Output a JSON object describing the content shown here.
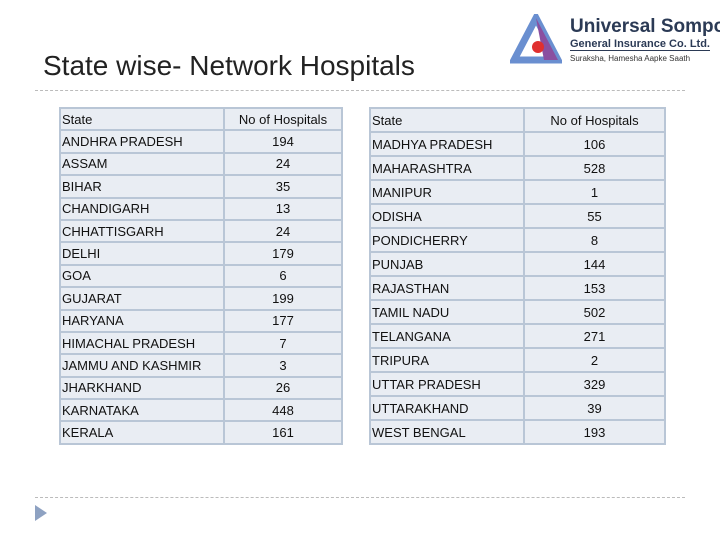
{
  "slide": {
    "title": "State wise- Network Hospitals"
  },
  "logo": {
    "name": "Universal Sompo",
    "subtitle": "General Insurance Co. Ltd.",
    "tagline": "Suraksha, Hamesha Aapke Saath"
  },
  "table_left": {
    "headers": [
      "State",
      "No of Hospitals"
    ],
    "rows": [
      [
        "ANDHRA PRADESH",
        "194"
      ],
      [
        "ASSAM",
        "24"
      ],
      [
        "BIHAR",
        "35"
      ],
      [
        "CHANDIGARH",
        "13"
      ],
      [
        "CHHATTISGARH",
        "24"
      ],
      [
        "DELHI",
        "179"
      ],
      [
        "GOA",
        "6"
      ],
      [
        "GUJARAT",
        "199"
      ],
      [
        "HARYANA",
        "177"
      ],
      [
        "HIMACHAL PRADESH",
        "7"
      ],
      [
        "JAMMU AND KASHMIR",
        "3"
      ],
      [
        "JHARKHAND",
        "26"
      ],
      [
        "KARNATAKA",
        "448"
      ],
      [
        "KERALA",
        "161"
      ]
    ]
  },
  "table_right": {
    "headers": [
      "State",
      "No of Hospitals"
    ],
    "rows": [
      [
        "MADHYA PRADESH",
        "106"
      ],
      [
        "MAHARASHTRA",
        "528"
      ],
      [
        "MANIPUR",
        "1"
      ],
      [
        "ODISHA",
        "55"
      ],
      [
        "PONDICHERRY",
        "8"
      ],
      [
        "PUNJAB",
        "144"
      ],
      [
        "RAJASTHAN",
        "153"
      ],
      [
        "TAMIL NADU",
        "502"
      ],
      [
        "TELANGANA",
        "271"
      ],
      [
        "TRIPURA",
        "2"
      ],
      [
        "UTTAR PRADESH",
        "329"
      ],
      [
        "UTTARAKHAND",
        "39"
      ],
      [
        "WEST BENGAL",
        "193"
      ]
    ]
  }
}
